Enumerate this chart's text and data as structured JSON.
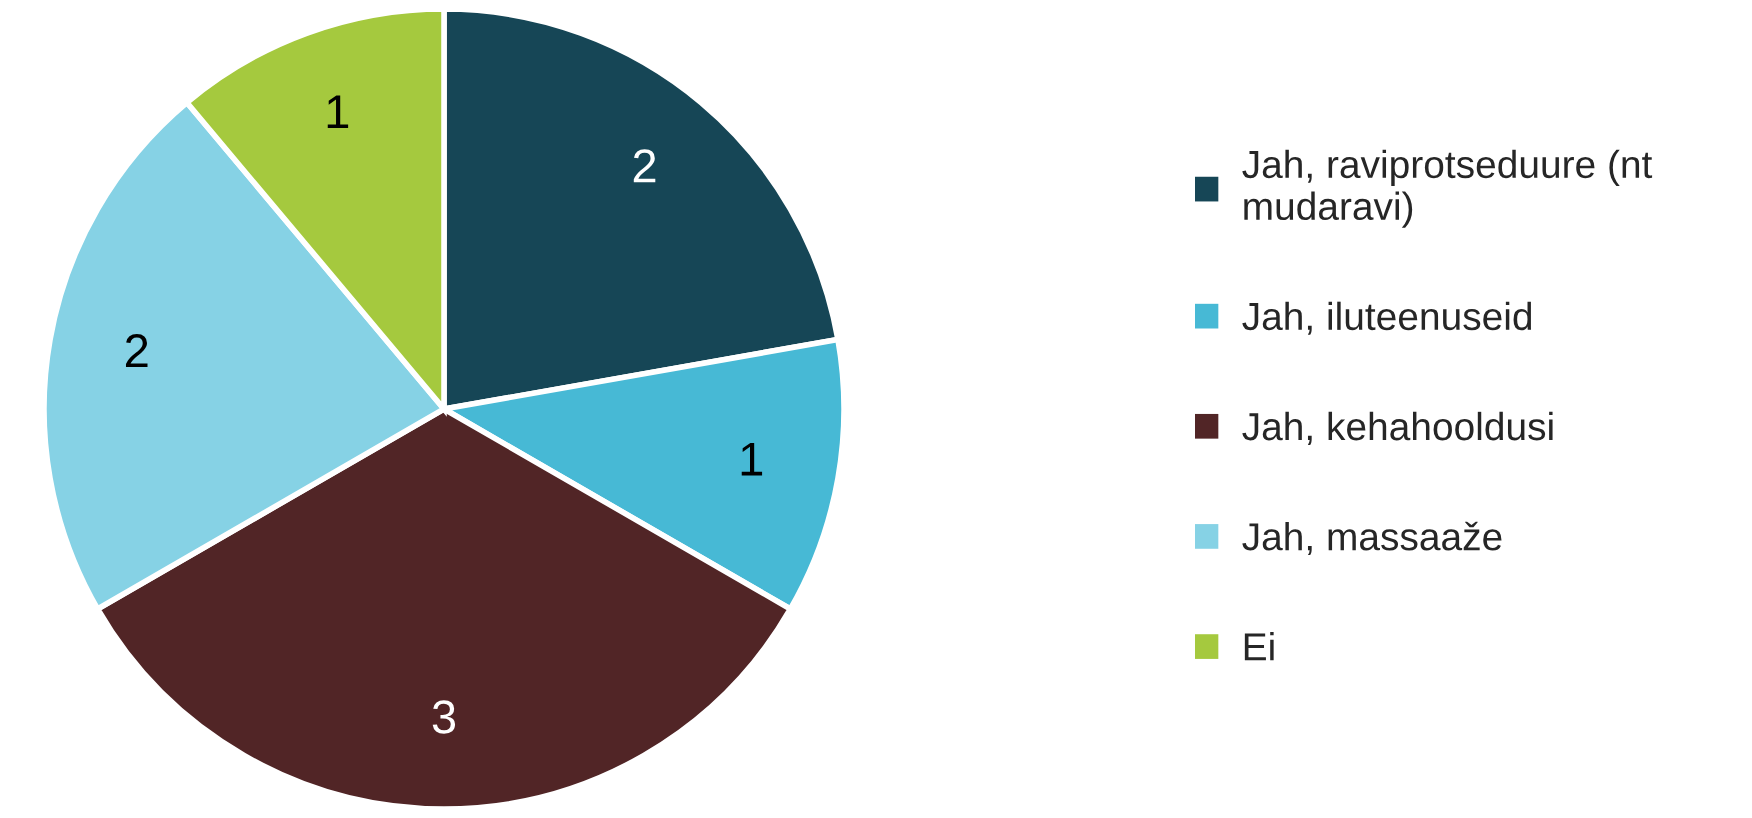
{
  "chart_data": {
    "type": "pie",
    "categories": [
      "Jah, raviprotseduure (nt mudaravi)",
      "Jah, iluteenuseid",
      "Jah, kehahooldusi",
      "Jah, massaaže",
      "Ei"
    ],
    "values": [
      2,
      1,
      3,
      2,
      1
    ],
    "colors": [
      "#164656",
      "#47b9d5",
      "#512526",
      "#86d2e5",
      "#a5c93e"
    ],
    "data_labels": true,
    "legend": "right"
  }
}
